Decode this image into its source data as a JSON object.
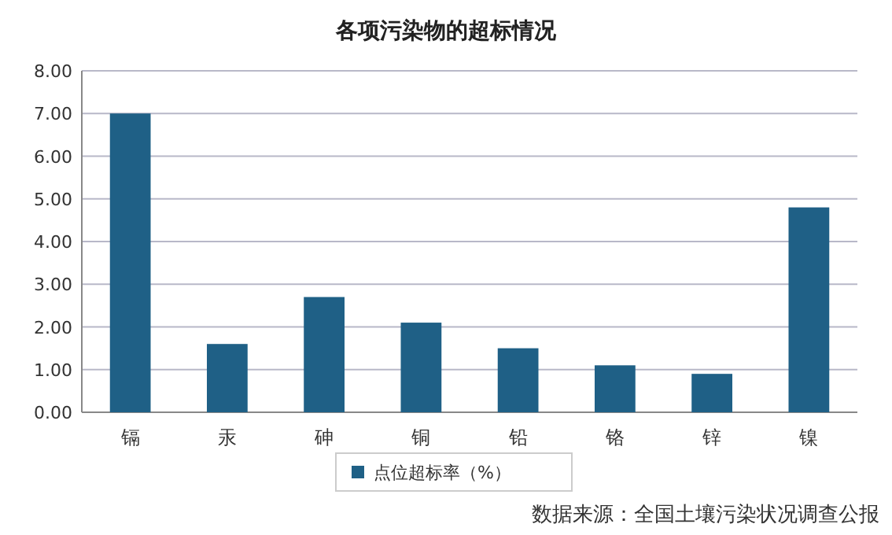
{
  "chart_data": {
    "type": "bar",
    "title": "各项污染物的超标情况",
    "categories": [
      "镉",
      "汞",
      "砷",
      "铜",
      "铅",
      "铬",
      "锌",
      "镍"
    ],
    "series": [
      {
        "name": "点位超标率（%）",
        "color": "#1f6086",
        "values": [
          7.0,
          1.6,
          2.7,
          2.1,
          1.5,
          1.1,
          0.9,
          4.8
        ]
      }
    ],
    "ylim": [
      0,
      8
    ],
    "yticks": [
      {
        "value": 0,
        "label": "0.00"
      },
      {
        "value": 1,
        "label": "1.00"
      },
      {
        "value": 2,
        "label": "2.00"
      },
      {
        "value": 3,
        "label": "3.00"
      },
      {
        "value": 4,
        "label": "4.00"
      },
      {
        "value": 5,
        "label": "5.00"
      },
      {
        "value": 6,
        "label": "6.00"
      },
      {
        "value": 7,
        "label": "7.00"
      },
      {
        "value": 8,
        "label": "8.00"
      }
    ],
    "grid": "y",
    "legend": "bottom",
    "annotations": [
      "数据来源：全国土壤污染状况调查公报"
    ]
  }
}
